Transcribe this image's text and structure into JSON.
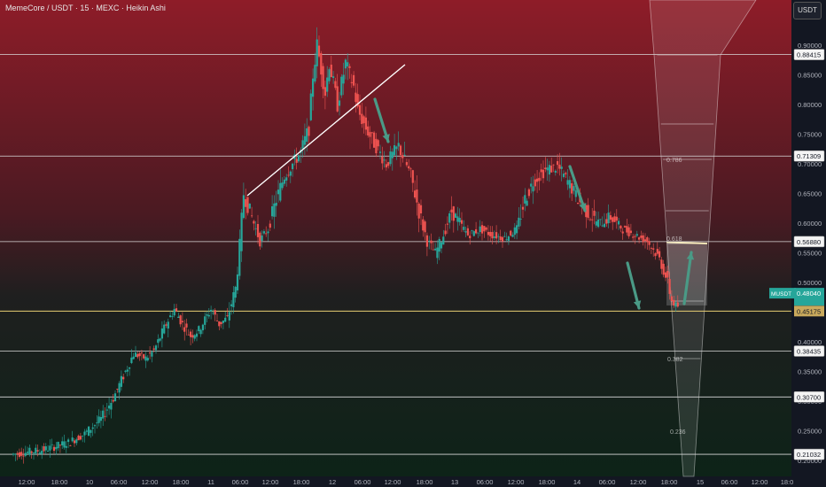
{
  "header": {
    "title": "MemeCore / USDT · 15 · MEXC · Heikin Ashi",
    "currency_button": "USDT"
  },
  "colors": {
    "bull": "#26a69a",
    "bear": "#ef5350",
    "bg_top": "#8e1c28",
    "bg_bottom": "#0d2318",
    "level_line": "#d9d9d9",
    "highlight_line": "#e9cf73",
    "trendline": "#ffffff",
    "arrow": "#4a9a86",
    "axis_text": "#b2b5be"
  },
  "chart_data": {
    "type": "candlestick",
    "style": "Heikin Ashi",
    "interval": "15",
    "ylim": [
      0.2,
      0.94
    ],
    "y_ticks": [
      "0.90000",
      "0.85000",
      "0.80000",
      "0.75000",
      "0.70000",
      "0.65000",
      "0.60000",
      "0.55000",
      "0.50000",
      "0.45000",
      "0.40000",
      "0.35000",
      "0.30000",
      "0.25000",
      "0.20000"
    ],
    "x_ticks": [
      "12:00",
      "18:00",
      "10",
      "06:00",
      "12:00",
      "18:00",
      "11",
      "06:00",
      "12:00",
      "18:00",
      "12",
      "06:00",
      "12:00",
      "18:00",
      "13",
      "06:00",
      "12:00",
      "18:00",
      "14",
      "06:00",
      "12:00",
      "18:00",
      "15",
      "06:00",
      "12:00",
      "18:0"
    ],
    "price_path": [
      [
        0,
        0.21
      ],
      [
        8,
        0.218
      ],
      [
        14,
        0.23
      ],
      [
        18,
        0.245
      ],
      [
        22,
        0.27
      ],
      [
        25,
        0.305
      ],
      [
        27,
        0.335
      ],
      [
        29,
        0.365
      ],
      [
        30,
        0.38
      ],
      [
        33,
        0.372
      ],
      [
        35,
        0.385
      ],
      [
        38,
        0.43
      ],
      [
        40,
        0.455
      ],
      [
        42,
        0.43
      ],
      [
        44,
        0.41
      ],
      [
        46,
        0.42
      ],
      [
        49,
        0.455
      ],
      [
        51,
        0.43
      ],
      [
        53,
        0.44
      ],
      [
        55,
        0.49
      ],
      [
        56,
        0.56
      ],
      [
        57,
        0.65
      ],
      [
        59,
        0.61
      ],
      [
        61,
        0.57
      ],
      [
        63,
        0.59
      ],
      [
        65,
        0.64
      ],
      [
        67,
        0.68
      ],
      [
        69,
        0.7
      ],
      [
        71,
        0.72
      ],
      [
        73,
        0.76
      ],
      [
        74,
        0.85
      ],
      [
        75,
        0.9
      ],
      [
        77,
        0.82
      ],
      [
        78,
        0.87
      ],
      [
        80,
        0.8
      ],
      [
        82,
        0.87
      ],
      [
        84,
        0.83
      ],
      [
        85,
        0.79
      ],
      [
        87,
        0.76
      ],
      [
        89,
        0.735
      ],
      [
        92,
        0.7
      ],
      [
        95,
        0.73
      ],
      [
        98,
        0.68
      ],
      [
        100,
        0.62
      ],
      [
        102,
        0.57
      ],
      [
        104,
        0.55
      ],
      [
        106,
        0.58
      ],
      [
        108,
        0.62
      ],
      [
        110,
        0.6
      ],
      [
        112,
        0.58
      ],
      [
        115,
        0.59
      ],
      [
        118,
        0.58
      ],
      [
        121,
        0.575
      ],
      [
        124,
        0.59
      ],
      [
        126,
        0.64
      ],
      [
        128,
        0.67
      ],
      [
        131,
        0.69
      ],
      [
        134,
        0.695
      ],
      [
        137,
        0.665
      ],
      [
        139,
        0.64
      ],
      [
        141,
        0.62
      ],
      [
        144,
        0.6
      ],
      [
        147,
        0.61
      ],
      [
        150,
        0.59
      ],
      [
        153,
        0.58
      ],
      [
        156,
        0.57
      ],
      [
        159,
        0.54
      ],
      [
        161,
        0.5
      ],
      [
        162,
        0.47
      ],
      [
        163,
        0.46
      ]
    ],
    "horizontal_levels": [
      {
        "price": 0.88415,
        "label": "0.88415"
      },
      {
        "price": 0.71309,
        "label": "0.71309"
      },
      {
        "price": 0.5688,
        "label": "0.56880"
      },
      {
        "price": 0.38435,
        "label": "0.38435"
      },
      {
        "price": 0.307,
        "label": "0.30700"
      },
      {
        "price": 0.21032,
        "label": "0.21032"
      }
    ],
    "highlight_level": {
      "price": 0.45175,
      "label": "0.45175"
    },
    "current_price": {
      "price": 0.4804,
      "label": "0.48040",
      "symbol": "MUSDT"
    },
    "fib_cone_labels": [
      "0.618",
      "0.786",
      "0.382",
      "0.236"
    ]
  }
}
